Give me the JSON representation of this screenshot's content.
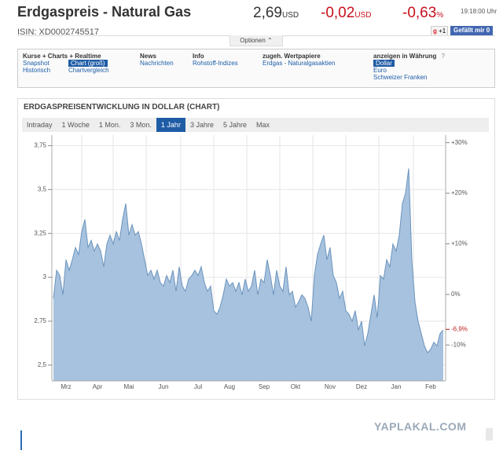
{
  "header": {
    "title": "Erdgaspreis - Natural Gas",
    "isin": "ISIN: XD0002745517",
    "price": "2,69",
    "price_unit": "USD",
    "change": "-0,02",
    "change_unit": "USD",
    "change_pct": "-0,63",
    "change_pct_unit": "%",
    "time": "19:18:00 Uhr",
    "gplus_icon": "g",
    "gplus": "+1",
    "like": "Gefällt mir 0",
    "options": "Optionen"
  },
  "nav": [
    {
      "heading": "Kurse + Charts + Realtime",
      "links": [
        "Snapshot",
        "Chart (groß)",
        "Historisch",
        "Chartvergleich"
      ],
      "selected_index": 1
    },
    {
      "heading": "News",
      "links": [
        "Nachrichten"
      ]
    },
    {
      "heading": "Info",
      "links": [
        "Rohstoff-Indizes"
      ]
    },
    {
      "heading": "zugeh. Wertpapiere",
      "links": [
        "Erdgas - Naturalgasaktien"
      ]
    },
    {
      "heading": "anzeigen in Währung",
      "help": "?",
      "links": [
        "Dollar",
        "Euro",
        "Schweizer Franken"
      ],
      "selected_index": 0
    }
  ],
  "chart_panel": {
    "title": "ERDGASPREISENTWICKLUNG IN DOLLAR (CHART)",
    "tabs": [
      "Intraday",
      "1 Woche",
      "1 Mon.",
      "3 Mon.",
      "1 Jahr",
      "3 Jahre",
      "5 Jahre",
      "Max"
    ],
    "selected_tab": 4
  },
  "chart_data": {
    "type": "area",
    "color": "#a7c2de",
    "line_color": "#6a93bd",
    "grid": true,
    "categories": [
      null,
      null,
      null,
      null,
      "Mrz",
      null,
      null,
      null,
      null,
      null,
      null,
      null,
      null,
      null,
      "Apr",
      null,
      null,
      null,
      null,
      null,
      null,
      null,
      null,
      null,
      "Mai",
      null,
      null,
      null,
      null,
      null,
      null,
      null,
      null,
      null,
      null,
      "Jun",
      null,
      null,
      null,
      null,
      null,
      null,
      null,
      null,
      null,
      null,
      "Jul",
      null,
      null,
      null,
      null,
      null,
      null,
      null,
      null,
      null,
      "Aug",
      null,
      null,
      null,
      null,
      null,
      null,
      null,
      null,
      null,
      null,
      "Sep",
      null,
      null,
      null,
      null,
      null,
      null,
      null,
      null,
      null,
      "Okt",
      null,
      null,
      null,
      null,
      null,
      null,
      null,
      null,
      null,
      null,
      "Nov",
      null,
      null,
      null,
      null,
      null,
      null,
      null,
      null,
      null,
      "Dez",
      null,
      null,
      null,
      null,
      null,
      null,
      null,
      null,
      null,
      null,
      "Jan",
      null,
      null,
      null,
      null,
      null,
      null,
      null,
      null,
      null,
      null,
      "Feb",
      null,
      null,
      null,
      null
    ],
    "values": [
      2.88,
      3.04,
      3.01,
      2.9,
      3.1,
      3.04,
      3.1,
      3.17,
      3.13,
      3.26,
      3.33,
      3.17,
      3.21,
      3.15,
      3.19,
      3.15,
      3.06,
      3.19,
      3.24,
      3.19,
      3.26,
      3.21,
      3.33,
      3.42,
      3.24,
      3.3,
      3.24,
      3.26,
      3.19,
      3.1,
      3.01,
      3.04,
      2.99,
      3.04,
      2.97,
      2.95,
      3.01,
      2.97,
      3.04,
      2.92,
      3.06,
      2.95,
      2.92,
      2.99,
      3.01,
      3.04,
      3.01,
      3.06,
      2.97,
      2.92,
      2.95,
      2.81,
      2.79,
      2.83,
      2.9,
      2.99,
      2.95,
      2.97,
      2.92,
      2.97,
      2.9,
      2.99,
      2.92,
      2.95,
      3.04,
      2.9,
      2.99,
      2.97,
      3.1,
      3.01,
      2.9,
      3.04,
      2.95,
      2.92,
      3.06,
      2.9,
      2.92,
      2.83,
      2.86,
      2.9,
      2.88,
      2.83,
      2.75,
      3.01,
      3.13,
      3.19,
      3.24,
      3.1,
      3.17,
      3.01,
      2.97,
      2.88,
      2.92,
      2.81,
      2.79,
      2.75,
      2.81,
      2.7,
      2.75,
      2.61,
      2.68,
      2.79,
      2.9,
      2.77,
      3.01,
      2.99,
      3.1,
      3.06,
      3.19,
      3.15,
      3.24,
      3.42,
      3.48,
      3.62,
      3.1,
      2.86,
      2.75,
      2.68,
      2.61,
      2.57,
      2.59,
      2.63,
      2.61,
      2.68,
      2.7
    ],
    "ylim": [
      2.41,
      3.81
    ],
    "yticks": [
      {
        "value": 2.5,
        "label": "2,5"
      },
      {
        "value": 2.75,
        "label": "2,75"
      },
      3,
      {
        "value": 3.25,
        "label": "3,25"
      },
      {
        "value": 3.5,
        "label": "3,5"
      },
      {
        "value": 3.75,
        "label": "3,75"
      }
    ],
    "y2lim": [
      -17.1,
      31.5
    ],
    "y2ticks": [
      {
        "value": -10,
        "label": "-10%"
      },
      {
        "value": 0,
        "label": "0%"
      },
      {
        "value": 10,
        "label": "+10%"
      },
      {
        "value": 20,
        "label": "+20%"
      },
      {
        "value": 30,
        "label": "+30%"
      }
    ],
    "last_marker": {
      "value": -6.9,
      "label": "-6,9%"
    }
  },
  "watermark": "YAPLAKAL.COM"
}
